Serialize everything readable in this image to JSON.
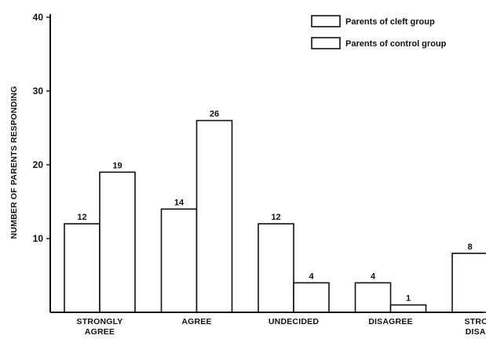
{
  "chart_data": {
    "type": "bar",
    "title": "",
    "xlabel": "",
    "ylabel": "NUMBER OF PARENTS RESPONDING",
    "ylim": [
      0,
      40
    ],
    "yticks": [
      10,
      20,
      30,
      40
    ],
    "categories": [
      [
        "STRONGLY",
        "AGREE"
      ],
      [
        "AGREE"
      ],
      [
        "UNDECIDED"
      ],
      [
        "DISAGREE"
      ],
      [
        "STRONGLY",
        "DISAGREE"
      ]
    ],
    "series": [
      {
        "name": "Parents of cleft group",
        "values": [
          12,
          14,
          12,
          4,
          8
        ],
        "labels": [
          "12",
          "14",
          "12",
          "4",
          "8"
        ]
      },
      {
        "name": "Parents of control group",
        "values": [
          19,
          26,
          4,
          1,
          0
        ],
        "labels": [
          "19",
          "26",
          "4",
          "1",
          ""
        ]
      }
    ],
    "legend": "top-right",
    "grid": false
  }
}
